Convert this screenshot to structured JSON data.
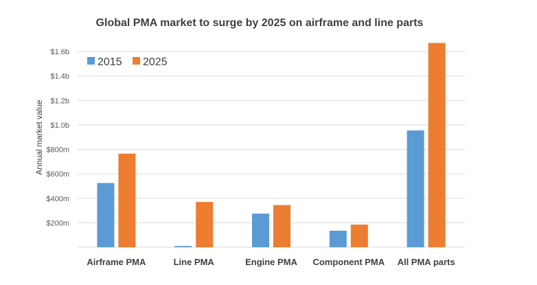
{
  "chart_data": {
    "type": "bar",
    "title": "Global PMA market to surge by 2025 on airframe and line parts",
    "xlabel": "",
    "ylabel": "Annual market value",
    "categories": [
      "Airframe PMA",
      "Line PMA",
      "Engine PMA",
      "Component PMA",
      "All PMA parts"
    ],
    "series": [
      {
        "name": "2015",
        "color": "#5b9bd5",
        "values": [
          525,
          10,
          275,
          135,
          955
        ]
      },
      {
        "name": "2025",
        "color": "#ed7d31",
        "values": [
          765,
          370,
          345,
          185,
          1670
        ]
      }
    ],
    "units": "millions USD",
    "ylim": [
      0,
      1700
    ],
    "yticks": [
      200,
      400,
      600,
      800,
      1000,
      1200,
      1400,
      1600
    ],
    "ytick_labels": [
      "$200m",
      "$400m",
      "$600m",
      "$800m",
      "$1.0b",
      "$1.2b",
      "$1.4b",
      "$1.6b"
    ],
    "grid": true,
    "legend": "top-left"
  }
}
